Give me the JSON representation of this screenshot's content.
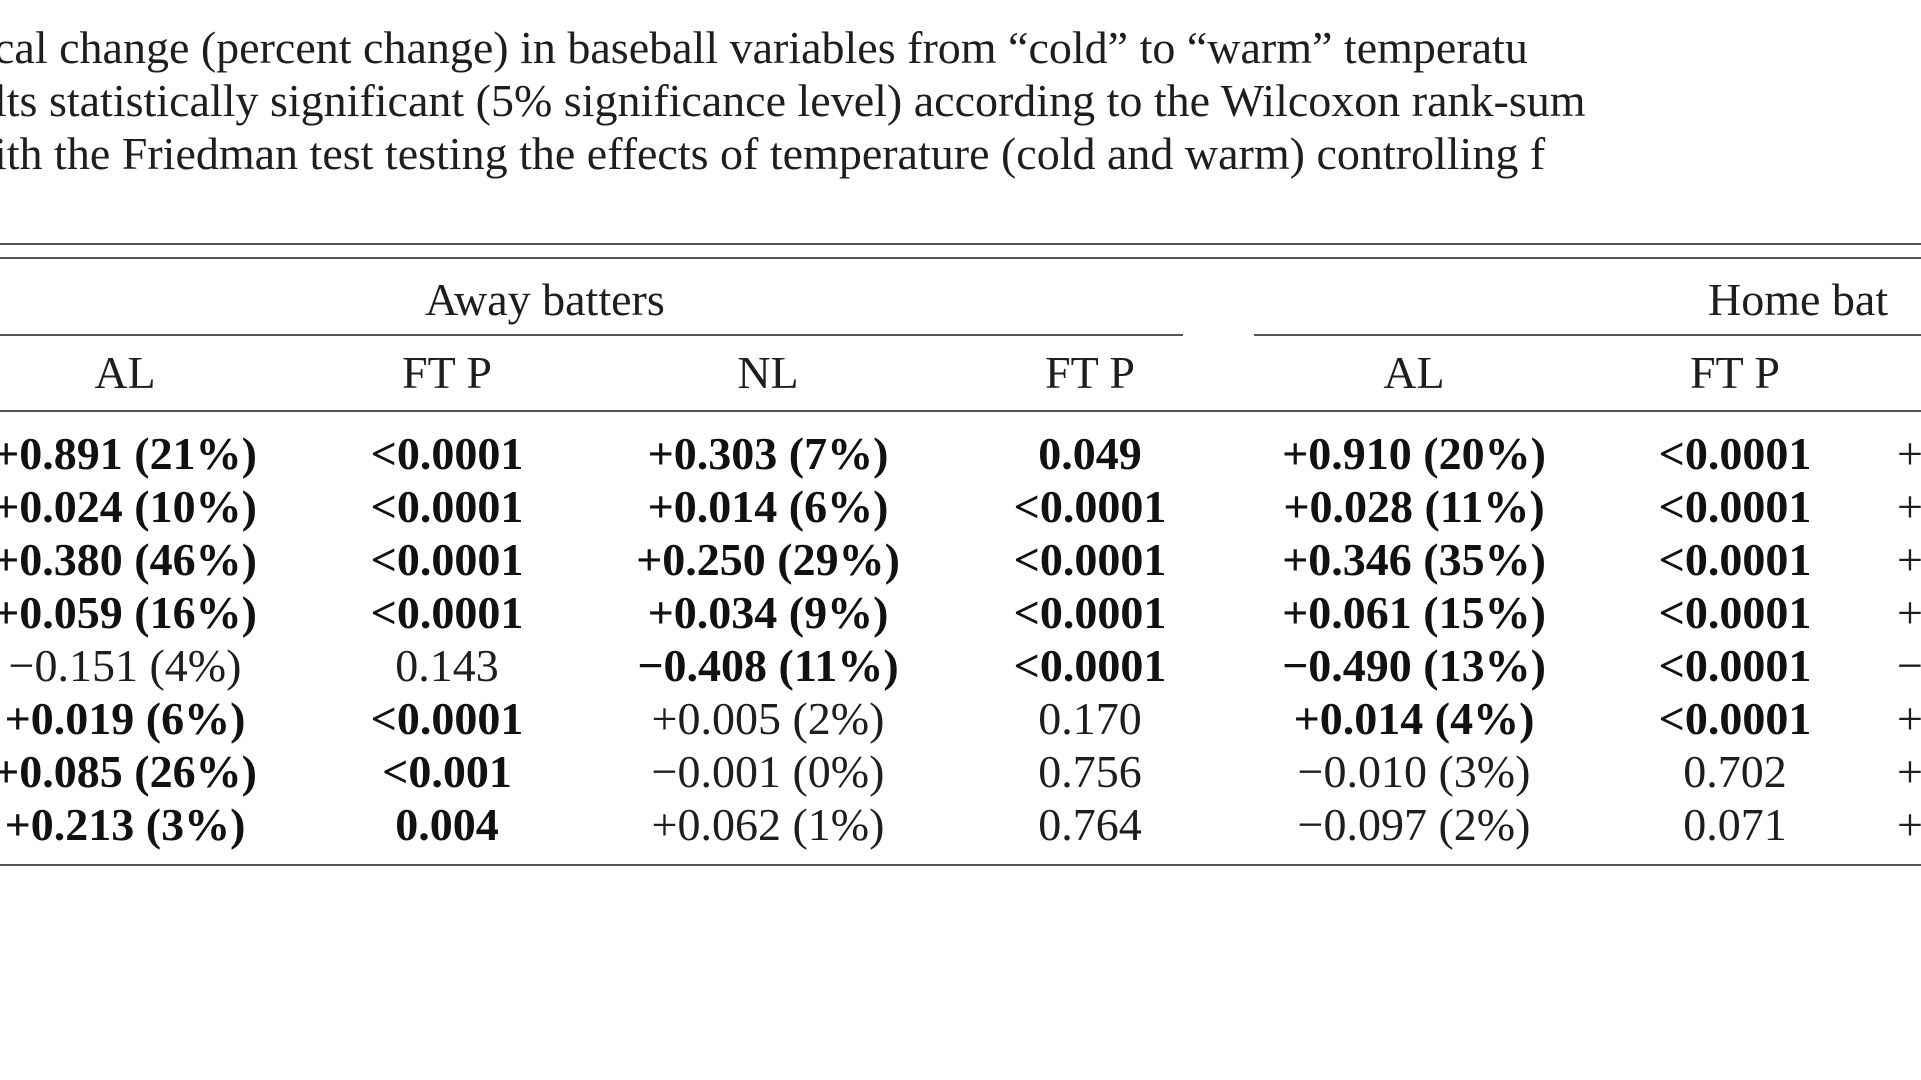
{
  "caption": {
    "line1": "cal change (percent change) in baseball variables from “cold” to “warm” temperatu",
    "line2": "lts statistically significant (5% significance level) according to the Wilcoxon rank-sum",
    "line3": "ith the Friedman test testing the effects of temperature (cold and warm) controlling f"
  },
  "table": {
    "group_away": "Away batters",
    "group_home": "Home bat",
    "columns": [
      "AL",
      "FT P",
      "NL",
      "FT P",
      "AL",
      "FT P"
    ],
    "rows": [
      [
        {
          "t": "+0.891 (21%)",
          "b": true
        },
        {
          "t": "<0.0001",
          "b": true
        },
        {
          "t": "+0.303 (7%)",
          "b": true
        },
        {
          "t": "0.049",
          "b": true
        },
        {
          "t": "+0.910 (20%)",
          "b": true
        },
        {
          "t": "<0.0001",
          "b": true
        },
        {
          "t": "+",
          "b": false
        }
      ],
      [
        {
          "t": "+0.024 (10%)",
          "b": true
        },
        {
          "t": "<0.0001",
          "b": true
        },
        {
          "t": "+0.014 (6%)",
          "b": true
        },
        {
          "t": "<0.0001",
          "b": true
        },
        {
          "t": "+0.028 (11%)",
          "b": true
        },
        {
          "t": "<0.0001",
          "b": true
        },
        {
          "t": "+",
          "b": false
        }
      ],
      [
        {
          "t": "+0.380 (46%)",
          "b": true
        },
        {
          "t": "<0.0001",
          "b": true
        },
        {
          "t": "+0.250 (29%)",
          "b": true
        },
        {
          "t": "<0.0001",
          "b": true
        },
        {
          "t": "+0.346 (35%)",
          "b": true
        },
        {
          "t": "<0.0001",
          "b": true
        },
        {
          "t": "+",
          "b": false
        }
      ],
      [
        {
          "t": "+0.059 (16%)",
          "b": true
        },
        {
          "t": "<0.0001",
          "b": true
        },
        {
          "t": "+0.034 (9%)",
          "b": true
        },
        {
          "t": "<0.0001",
          "b": true
        },
        {
          "t": "+0.061 (15%)",
          "b": true
        },
        {
          "t": "<0.0001",
          "b": true
        },
        {
          "t": "+",
          "b": false
        }
      ],
      [
        {
          "t": "−0.151 (4%)",
          "b": false
        },
        {
          "t": "0.143",
          "b": false
        },
        {
          "t": "−0.408 (11%)",
          "b": true
        },
        {
          "t": "<0.0001",
          "b": true
        },
        {
          "t": "−0.490 (13%)",
          "b": true
        },
        {
          "t": "<0.0001",
          "b": true
        },
        {
          "t": "−",
          "b": false
        }
      ],
      [
        {
          "t": "+0.019 (6%)",
          "b": true
        },
        {
          "t": "<0.0001",
          "b": true
        },
        {
          "t": "+0.005 (2%)",
          "b": false
        },
        {
          "t": "0.170",
          "b": false
        },
        {
          "t": "+0.014 (4%)",
          "b": true
        },
        {
          "t": "<0.0001",
          "b": true
        },
        {
          "t": "+",
          "b": false
        }
      ],
      [
        {
          "t": "+0.085 (26%)",
          "b": true
        },
        {
          "t": "<0.001",
          "b": true
        },
        {
          "t": "−0.001 (0%)",
          "b": false
        },
        {
          "t": "0.756",
          "b": false
        },
        {
          "t": "−0.010 (3%)",
          "b": false
        },
        {
          "t": "0.702",
          "b": false
        },
        {
          "t": "+",
          "b": false
        }
      ],
      [
        {
          "t": "+0.213 (3%)",
          "b": true
        },
        {
          "t": "0.004",
          "b": true
        },
        {
          "t": "+0.062 (1%)",
          "b": false
        },
        {
          "t": "0.764",
          "b": false
        },
        {
          "t": "−0.097 (2%)",
          "b": false
        },
        {
          "t": "0.071",
          "b": false
        },
        {
          "t": "+",
          "b": false
        }
      ]
    ]
  }
}
